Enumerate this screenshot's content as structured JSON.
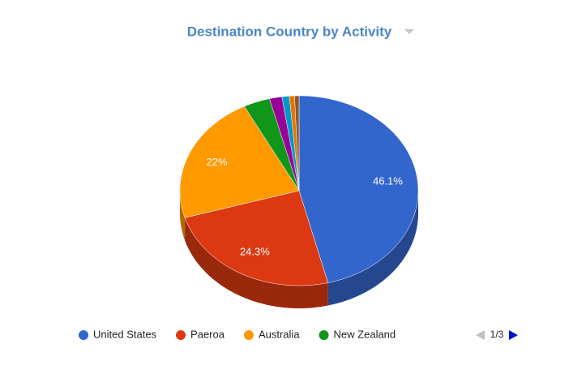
{
  "chart_data": {
    "type": "pie3d",
    "title": "Destination Country by Activity",
    "categories": [
      "United States",
      "Paeroa",
      "Australia",
      "New Zealand",
      null,
      null,
      null,
      null
    ],
    "values": [
      46.1,
      24.3,
      22,
      3.6,
      1.7,
      1.0,
      0.7,
      0.6
    ],
    "value_labels": [
      "46.1%",
      "24.3%",
      "22%",
      null,
      null,
      null,
      null,
      null
    ],
    "colors": [
      "#3366cc",
      "#dc3912",
      "#ff9900",
      "#109618",
      "#990099",
      "#0099c6",
      "#e67300",
      "#8b5a2b"
    ],
    "legend": "bottom",
    "legend_page": "1/3"
  }
}
